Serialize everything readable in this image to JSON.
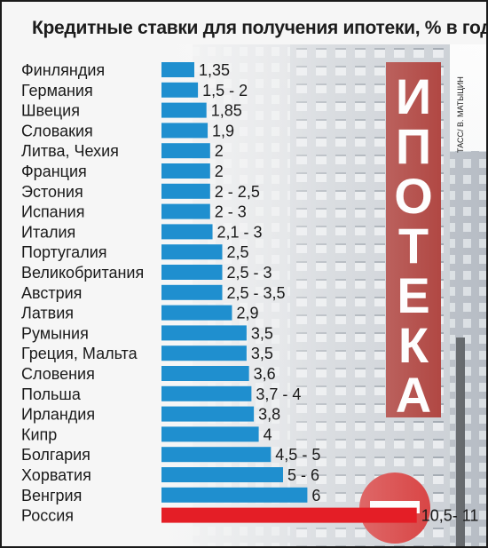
{
  "chart_data": {
    "type": "bar",
    "orientation": "horizontal",
    "title": "Кредитные ставки для получения ипотеки,  % в год",
    "categories": [
      "Финляндия",
      "Германия",
      "Швеция",
      "Словакия",
      "Литва, Чехия",
      "Франция",
      "Эстония",
      "Испания",
      "Италия",
      "Португалия",
      "Великобритания",
      "Австрия",
      "Латвия",
      "Румыния",
      "Греция, Мальта",
      "Словения",
      "Польша",
      "Ирландия",
      "Кипр",
      "Болгария",
      "Хорватия",
      "Венгрия",
      "Россия"
    ],
    "value_labels": [
      "1,35",
      "1,5 - 2",
      "1,85",
      "1,9",
      "2",
      "2",
      "2 - 2,5",
      "2 - 3",
      "2,1 - 3",
      "2,5",
      "2,5 - 3",
      "2,5 - 3,5",
      "2,9",
      "3,5",
      "3,5",
      "3,6",
      "3,7 - 4",
      "3,8",
      "4",
      "4,5 - 5",
      "5 - 6",
      "6",
      "10,5- 11"
    ],
    "values": [
      1.35,
      1.5,
      1.85,
      1.9,
      2,
      2,
      2,
      2,
      2.1,
      2.5,
      2.5,
      2.5,
      2.9,
      3.5,
      3.5,
      3.6,
      3.7,
      3.8,
      4,
      4.5,
      5,
      6,
      10.5
    ],
    "colors": {
      "bar": "#1f8fcf",
      "highlight": "#e41e26"
    },
    "highlight_category": "Россия",
    "grid": false,
    "legend": "none"
  },
  "photo": {
    "sign_text": [
      "И",
      "П",
      "О",
      "Т",
      "Е",
      "К",
      "А"
    ],
    "credit": "ТАСС/ В. МАТЫЦИН"
  }
}
